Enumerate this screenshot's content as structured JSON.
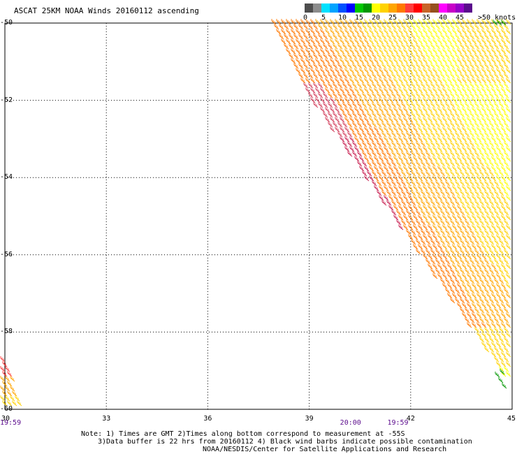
{
  "title": "ASCAT 25KM NOAA Winds 20160112 ascending",
  "colorbar": {
    "colors": [
      "#4d4d4d",
      "#8c8c8c",
      "#00e1ff",
      "#00a3ff",
      "#0050ff",
      "#0000ff",
      "#00c800",
      "#009600",
      "#ffff00",
      "#ffd200",
      "#ffa500",
      "#ff7800",
      "#ff3c3c",
      "#ff0000",
      "#c86428",
      "#96501e",
      "#ff00ff",
      "#c800c8",
      "#9600c8",
      "#5a0a8c"
    ],
    "labels": [
      "0",
      "5",
      "10",
      "15",
      "20",
      "25",
      "30",
      "35",
      "40",
      "45",
      ">50 knots"
    ]
  },
  "y_axis": {
    "ticks": [
      "-50",
      "-52",
      "-54",
      "-56",
      "-58",
      "-60"
    ],
    "values": [
      -50,
      -52,
      -54,
      -56,
      -58,
      -60
    ]
  },
  "x_axis": {
    "ticks": [
      "30",
      "33",
      "36",
      "39",
      "42",
      "45"
    ],
    "values": [
      30,
      33,
      36,
      39,
      42,
      45
    ]
  },
  "time_labels": [
    {
      "text": "19:59",
      "lon": 30
    },
    {
      "text": "20:00",
      "lon": 40.2
    },
    {
      "text": "19:59",
      "lon": 41.6
    }
  ],
  "notes": [
    "Note: 1) Times are GMT 2)Times along bottom correspond to measurement at -55S",
    "3)Data buffer is 22 hrs from 20160112 4) Black wind barbs indicate possible contamination",
    "NOAA/NESDIS/Center for Satellite Applications and Research"
  ],
  "chart_data": {
    "type": "wind-barb-map",
    "title": "ASCAT 25KM NOAA Winds 20160112 ascending",
    "units": "knots",
    "lon_range": [
      30,
      45
    ],
    "lat_range": [
      -60,
      -50
    ],
    "grid": true,
    "swaths": [
      {
        "name": "main swath",
        "corners": [
          [
            37.9,
            -50
          ],
          [
            45,
            -50
          ],
          [
            45,
            -59.4
          ],
          [
            39,
            -51.9
          ]
        ],
        "speed_knots": "20-40"
      },
      {
        "name": "lower-left swath",
        "corners": [
          [
            30,
            -58.6
          ],
          [
            30,
            -60
          ],
          [
            30.6,
            -60
          ]
        ],
        "speed_knots": "20-35"
      }
    ]
  }
}
